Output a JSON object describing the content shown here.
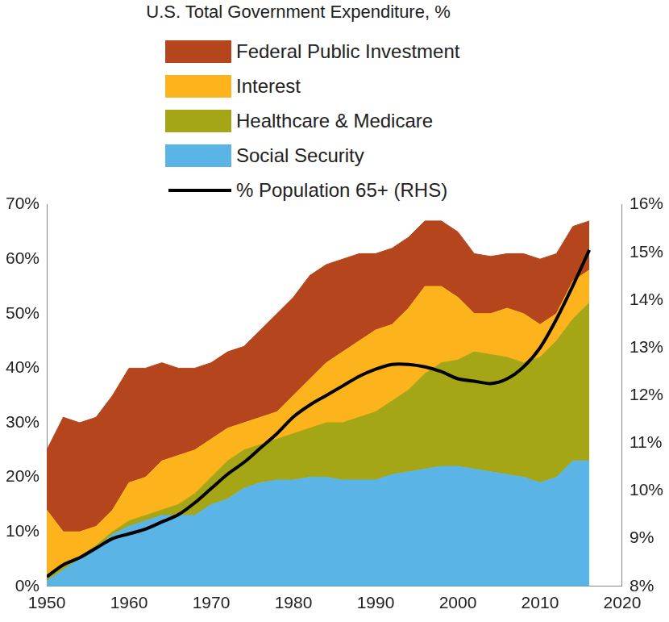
{
  "chart_data": {
    "type": "area",
    "title": "U.S. Total Government Expenditure, %",
    "stacked": true,
    "grid": false,
    "legend": "top",
    "x": [
      1950,
      1952,
      1954,
      1956,
      1958,
      1960,
      1962,
      1964,
      1966,
      1968,
      1970,
      1972,
      1974,
      1976,
      1978,
      1980,
      1982,
      1984,
      1986,
      1988,
      1990,
      1992,
      1994,
      1996,
      1998,
      2000,
      2002,
      2004,
      2006,
      2008,
      2010,
      2012,
      2014,
      2016
    ],
    "xlim": [
      1950,
      2020
    ],
    "xticks": [
      1950,
      1960,
      1970,
      1980,
      1990,
      2000,
      2010,
      2020
    ],
    "ylim": [
      0,
      70
    ],
    "yticks": [
      {
        "value": 0,
        "label": "0%"
      },
      {
        "value": 10,
        "label": "10%"
      },
      {
        "value": 20,
        "label": "20%"
      },
      {
        "value": 30,
        "label": "30%"
      },
      {
        "value": 40,
        "label": "40%"
      },
      {
        "value": 50,
        "label": "50%"
      },
      {
        "value": 60,
        "label": "60%"
      },
      {
        "value": 70,
        "label": "70%"
      }
    ],
    "y2lim": [
      8,
      16
    ],
    "y2ticks": [
      {
        "value": 8,
        "label": "8%"
      },
      {
        "value": 9,
        "label": "9%"
      },
      {
        "value": 10,
        "label": "10%"
      },
      {
        "value": 11,
        "label": "11%"
      },
      {
        "value": 12,
        "label": "12%"
      },
      {
        "value": 13,
        "label": "13%"
      },
      {
        "value": 14,
        "label": "14%"
      },
      {
        "value": 15,
        "label": "15%"
      },
      {
        "value": 16,
        "label": "16%"
      }
    ],
    "series": [
      {
        "name": "Federal Public Investment",
        "color": "#b5451c",
        "values": [
          11,
          21,
          20,
          20,
          21,
          21,
          20,
          18,
          16,
          15,
          14,
          14,
          14,
          16,
          18,
          18,
          19,
          18,
          17,
          16,
          14,
          14,
          13,
          12,
          12,
          12,
          11,
          10.5,
          10,
          11,
          12,
          11,
          10,
          9
        ]
      },
      {
        "name": "Interest",
        "color": "#fdb41c",
        "values": [
          12.5,
          6.5,
          4.5,
          3.5,
          4,
          7,
          7,
          9,
          9,
          8,
          7,
          6,
          5,
          5,
          5,
          7,
          9,
          11,
          13,
          14,
          15,
          14,
          15,
          16,
          14,
          11.5,
          7,
          7.5,
          9,
          9,
          6,
          5,
          7,
          6
        ]
      },
      {
        "name": "Healthcare & Medicare",
        "color": "#a5a615",
        "values": [
          0.5,
          0.5,
          0.5,
          0.5,
          0.5,
          1,
          1,
          1,
          2,
          4,
          5,
          7,
          7,
          7,
          7.5,
          8.5,
          9,
          10,
          10.5,
          11.5,
          12.5,
          13.5,
          15,
          17.5,
          19,
          19.5,
          21.5,
          21.5,
          21.5,
          21,
          23,
          25,
          26,
          29
        ]
      },
      {
        "name": "Social Security",
        "color": "#5ab4e6",
        "values": [
          1,
          3,
          5,
          7,
          9.5,
          11,
          12,
          13,
          13,
          13,
          15,
          16,
          18,
          19,
          19.5,
          19.5,
          20,
          20,
          19.5,
          19.5,
          19.5,
          20.5,
          21,
          21.5,
          22,
          22,
          21.5,
          21,
          20.5,
          20,
          19,
          20,
          23,
          23
        ]
      },
      {
        "name": "% Population 65+ (RHS)",
        "color": "#000000",
        "type": "line",
        "axis": "y2",
        "values": [
          8.2,
          8.45,
          8.6,
          8.8,
          9.0,
          9.1,
          9.2,
          9.35,
          9.5,
          9.75,
          10.05,
          10.35,
          10.6,
          10.9,
          11.2,
          11.55,
          11.8,
          12.0,
          12.2,
          12.4,
          12.55,
          12.65,
          12.65,
          12.6,
          12.5,
          12.35,
          12.3,
          12.25,
          12.35,
          12.6,
          13.0,
          13.6,
          14.3,
          15.05
        ]
      }
    ]
  }
}
